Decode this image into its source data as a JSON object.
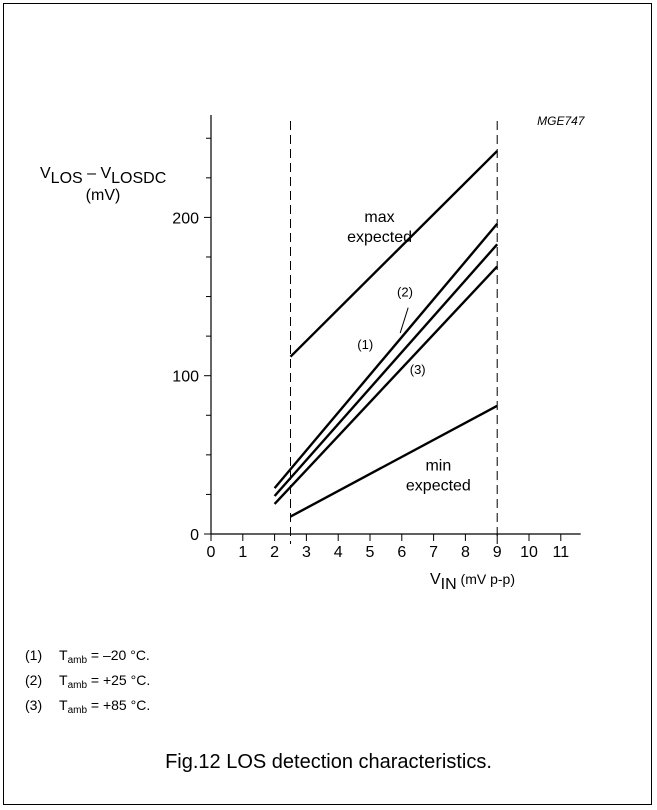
{
  "chart_data": {
    "type": "line",
    "reference_code": "MGE747",
    "ylabel": {
      "main": "V",
      "sub1": "LOS",
      "dash": " – V",
      "sub2": "LOSDC",
      "unit": "(mV)"
    },
    "xlabel": {
      "main": "V",
      "sub": "IN",
      "unit": " (mV p-p)"
    },
    "xlim": [
      0,
      11.5
    ],
    "ylim": [
      0,
      265
    ],
    "x_ticks": [
      0,
      1,
      2,
      3,
      4,
      5,
      6,
      7,
      8,
      9,
      10,
      11
    ],
    "y_ticks_labeled": [
      0,
      100,
      200
    ],
    "y_minor_ticks": [
      25,
      50,
      75,
      125,
      150,
      175,
      225,
      250
    ],
    "vertical_markers": [
      2.5,
      9
    ],
    "series": [
      {
        "id": "max",
        "label": "max expected",
        "label_lines": [
          "max",
          "expected"
        ],
        "points": [
          [
            2.5,
            112
          ],
          [
            9,
            242
          ]
        ]
      },
      {
        "id": "t1",
        "label": "(1)",
        "points": [
          [
            2,
            29
          ],
          [
            9,
            196
          ]
        ]
      },
      {
        "id": "t2",
        "label": "(2)",
        "points": [
          [
            2,
            24
          ],
          [
            9,
            183
          ]
        ]
      },
      {
        "id": "t3",
        "label": "(3)",
        "points": [
          [
            2,
            19
          ],
          [
            9,
            169
          ]
        ]
      },
      {
        "id": "min",
        "label": "min expected",
        "label_lines": [
          "min",
          "expected"
        ],
        "points": [
          [
            2.5,
            11
          ],
          [
            9,
            81
          ]
        ]
      }
    ]
  },
  "notes": [
    {
      "index": "(1)",
      "text_main": "T",
      "text_sub": "amb",
      "text_rest": " = –20 °C."
    },
    {
      "index": "(2)",
      "text_main": "T",
      "text_sub": "amb",
      "text_rest": " = +25 °C."
    },
    {
      "index": "(3)",
      "text_main": "T",
      "text_sub": "amb",
      "text_rest": " = +85 °C."
    }
  ],
  "caption": "Fig.12  LOS detection characteristics."
}
